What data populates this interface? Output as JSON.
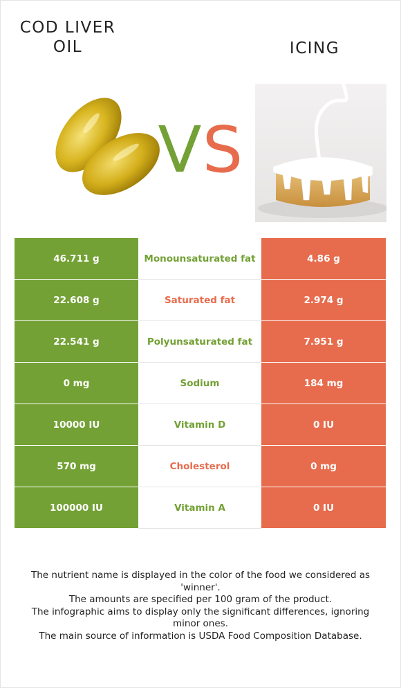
{
  "foods": {
    "left": {
      "name": "COD LIVER OIL",
      "color": "#73a135"
    },
    "right": {
      "name": "ICING",
      "color": "#e76c4d"
    }
  },
  "vs": {
    "v": "V",
    "s": "S"
  },
  "rows": [
    {
      "nutrient": "Monounsaturated fat",
      "left": "46.711 g",
      "right": "4.86 g",
      "winner": "left"
    },
    {
      "nutrient": "Saturated fat",
      "left": "22.608 g",
      "right": "2.974 g",
      "winner": "right"
    },
    {
      "nutrient": "Polyunsaturated fat",
      "left": "22.541 g",
      "right": "7.951 g",
      "winner": "left"
    },
    {
      "nutrient": "Sodium",
      "left": "0 mg",
      "right": "184 mg",
      "winner": "left"
    },
    {
      "nutrient": "Vitamin D",
      "left": "10000 IU",
      "right": "0 IU",
      "winner": "left"
    },
    {
      "nutrient": "Cholesterol",
      "left": "570 mg",
      "right": "0 mg",
      "winner": "right"
    },
    {
      "nutrient": "Vitamin A",
      "left": "100000 IU",
      "right": "0 IU",
      "winner": "left"
    }
  ],
  "footer": [
    "The nutrient name is displayed in the color of the food we considered as 'winner'.",
    "The amounts are specified per 100 gram of the product.",
    "The infographic aims to display only the significant differences, ignoring minor ones.",
    "The main source of information is USDA Food Composition Database."
  ]
}
